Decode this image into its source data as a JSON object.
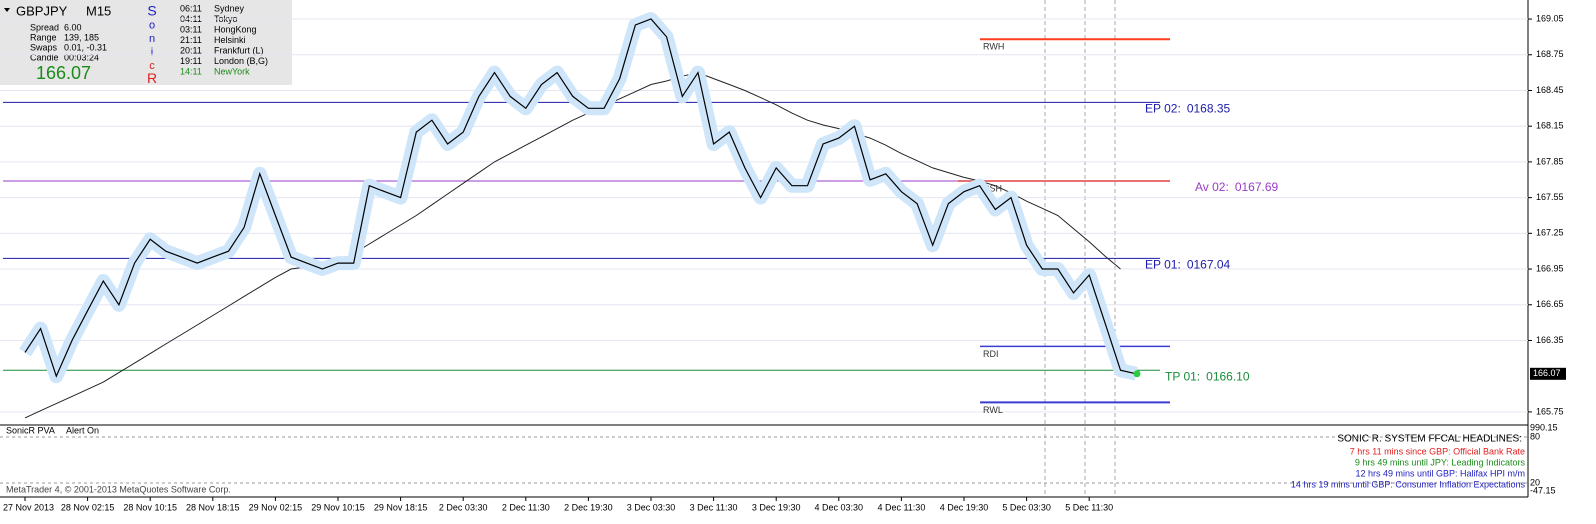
{
  "chart_data": {
    "type": "line",
    "symbol": "GBPJPY",
    "timeframe": "M15",
    "last_price": 166.07,
    "categories": [
      "27 Nov 2013",
      null,
      null,
      null,
      "28 Nov 02:15",
      null,
      null,
      null,
      "28 Nov 10:15",
      null,
      null,
      null,
      "28 Nov 18:15",
      null,
      null,
      null,
      "29 Nov 02:15",
      null,
      null,
      null,
      "29 Nov 10:15",
      null,
      null,
      null,
      "29 Nov 18:15",
      null,
      null,
      null,
      "2 Dec 03:30",
      null,
      null,
      null,
      "2 Dec 11:30",
      null,
      null,
      null,
      "2 Dec 19:30",
      null,
      null,
      null,
      "3 Dec 03:30",
      null,
      null,
      null,
      "3 Dec 11:30",
      null,
      null,
      null,
      "3 Dec 19:30",
      null,
      null,
      null,
      "4 Dec 03:30",
      null,
      null,
      null,
      "4 Dec 11:30",
      null,
      null,
      null,
      "4 Dec 19:30",
      null,
      null,
      null,
      "5 Dec 03:30",
      null,
      null,
      null,
      "5 Dec 11:30",
      null,
      null,
      null
    ],
    "series": [
      {
        "color": "#000000",
        "values": [
          166.25,
          166.45,
          166.05,
          166.35,
          166.6,
          166.85,
          166.65,
          167.0,
          167.2,
          167.1,
          167.05,
          167.0,
          167.05,
          167.1,
          167.3,
          167.75,
          167.4,
          167.05,
          167.0,
          166.95,
          167.0,
          167.0,
          167.65,
          167.6,
          167.55,
          168.1,
          168.2,
          168.0,
          168.1,
          168.4,
          168.6,
          168.4,
          168.3,
          168.5,
          168.6,
          168.4,
          168.3,
          168.3,
          168.55,
          169.0,
          169.05,
          168.9,
          168.4,
          168.6,
          168.0,
          168.1,
          167.8,
          167.55,
          167.8,
          167.65,
          167.65,
          168.0,
          168.05,
          168.15,
          167.7,
          167.75,
          167.6,
          167.5,
          167.15,
          167.5,
          167.6,
          167.65,
          167.45,
          167.55,
          167.15,
          166.95,
          166.95,
          166.75,
          166.9,
          166.5,
          166.1,
          166.07
        ]
      },
      {
        "color": "#222222",
        "values": [
          165.7,
          165.76,
          165.82,
          165.88,
          165.94,
          166.0,
          166.08,
          166.16,
          166.24,
          166.32,
          166.4,
          166.48,
          166.56,
          166.64,
          166.72,
          166.8,
          166.88,
          166.95,
          166.97,
          166.99,
          167.0,
          167.08,
          167.16,
          167.24,
          167.32,
          167.4,
          167.49,
          167.58,
          167.67,
          167.76,
          167.85,
          167.92,
          167.99,
          168.06,
          168.13,
          168.2,
          168.26,
          168.32,
          168.38,
          168.44,
          168.5,
          168.53,
          168.57,
          168.6,
          168.55,
          168.5,
          168.45,
          168.39,
          168.33,
          168.26,
          168.2,
          168.16,
          168.13,
          168.09,
          168.05,
          167.99,
          167.92,
          167.86,
          167.8,
          167.76,
          167.72,
          167.69,
          167.65,
          167.59,
          167.52,
          167.46,
          167.4,
          167.29,
          167.18,
          167.06,
          166.95,
          null
        ]
      }
    ],
    "ylim": [
      165.64,
      169.21
    ],
    "yticks": [
      169.05,
      168.75,
      168.45,
      168.15,
      167.85,
      167.55,
      167.25,
      166.95,
      166.65,
      166.35,
      165.75
    ],
    "levels": {
      "names": [
        "EP 02:",
        "Av 02:",
        "EP 01:",
        "TP 01:"
      ],
      "values": [
        168.35,
        167.69,
        167.04,
        166.1
      ],
      "value_labels": [
        "0168.35",
        "0167.69",
        "0167.04",
        "0166.10"
      ],
      "colors": [
        "#1c1ca8",
        "#9a3cc8",
        "#1c1ca8",
        "#1a8c3a"
      ]
    },
    "zones": {
      "names": [
        "RWH",
        "RSH",
        "RDI",
        "RWL"
      ],
      "values": [
        168.88,
        167.69,
        166.3,
        165.83
      ],
      "colors": [
        "#ff3c1e",
        "#e04040",
        "#3c3cd0",
        "#3c3cd0"
      ]
    },
    "indicator": {
      "title": "SonicR PVA",
      "status": "Alert On",
      "ticks": [
        "990.15",
        "80",
        "20",
        "-47.15"
      ]
    }
  },
  "info": {
    "rows": [
      [
        "Spread",
        "6.00"
      ],
      [
        "Range",
        "139, 185"
      ],
      [
        "Swaps",
        "0.01, -0.31"
      ],
      [
        "Candle",
        "00:03:24"
      ]
    ],
    "brand_letters": [
      "S",
      "o",
      "n",
      "i",
      "c",
      "R"
    ],
    "sessions": [
      [
        "06:11",
        "Sydney"
      ],
      [
        "04:11",
        "Tokyo"
      ],
      [
        "03:11",
        "HongKong"
      ],
      [
        "21:11",
        "Helsinki"
      ],
      [
        "20:11",
        "Frankfurt (L)"
      ],
      [
        "19:11",
        "London (B,G)"
      ],
      [
        "14:11",
        "NewYork"
      ]
    ]
  },
  "headlines": {
    "title": "SONIC R. SYSTEM  FFCAL HEADLINES:",
    "lines": [
      "7 hrs 11 mins since GBP: Official Bank Rate",
      "9 hrs 49 mins until JPY: Leading Indicators",
      "12 hrs 49 mins until GBP: Halifax HPI m/m",
      "14 hrs 19 mins until GBP: Consumer Inflation Expectations"
    ],
    "colors": [
      "#e02020",
      "#1a8c1a",
      "#2020c0",
      "#2020c0"
    ]
  },
  "copyright": "MetaTrader 4, © 2001-2013 MetaQuotes Software Corp."
}
